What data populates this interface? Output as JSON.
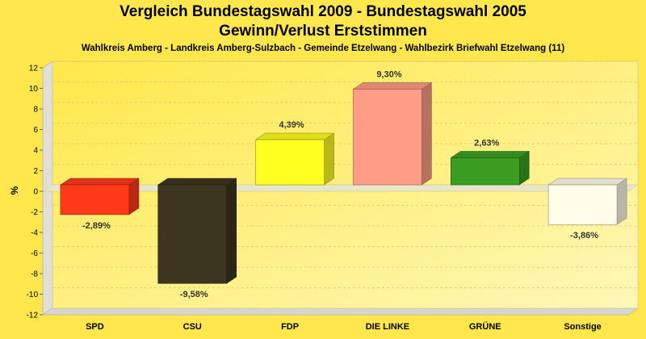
{
  "title_line1": "Vergleich Bundestagswahl 2009 - Bundestagswahl 2005",
  "title_line2": "Gewinn/Verlust Erststimmen",
  "subtitle": "Wahlkreis Amberg - Landkreis Amberg-Sulzbach - Gemeinde Etzelwang - Wahlbezirk Briefwahl Etzelwang (11)",
  "chart_data": {
    "type": "bar",
    "title": "Vergleich Bundestagswahl 2009 - Bundestagswahl 2005 Gewinn/Verlust Erststimmen",
    "subtitle": "Wahlkreis Amberg - Landkreis Amberg-Sulzbach - Gemeinde Etzelwang - Wahlbezirk Briefwahl Etzelwang (11)",
    "ylabel": "%",
    "xlabel": "",
    "ylim": [
      -12,
      12
    ],
    "yticks": [
      -12,
      -10,
      -8,
      -6,
      -4,
      -2,
      0,
      2,
      4,
      6,
      8,
      10,
      12
    ],
    "grid": true,
    "categories": [
      "SPD",
      "CSU",
      "FDP",
      "DIE LINKE",
      "GRÜNE",
      "Sonstige"
    ],
    "values": [
      -2.89,
      -9.58,
      4.39,
      9.3,
      2.63,
      -3.86
    ],
    "labels": [
      "-2,89%",
      "-9,58%",
      "4,39%",
      "9,30%",
      "2,63%",
      "-3,86%"
    ],
    "colors": [
      "#ff3a1a",
      "#3d3520",
      "#ffff22",
      "#ff9d86",
      "#3b9e22",
      "#fffde8"
    ]
  }
}
